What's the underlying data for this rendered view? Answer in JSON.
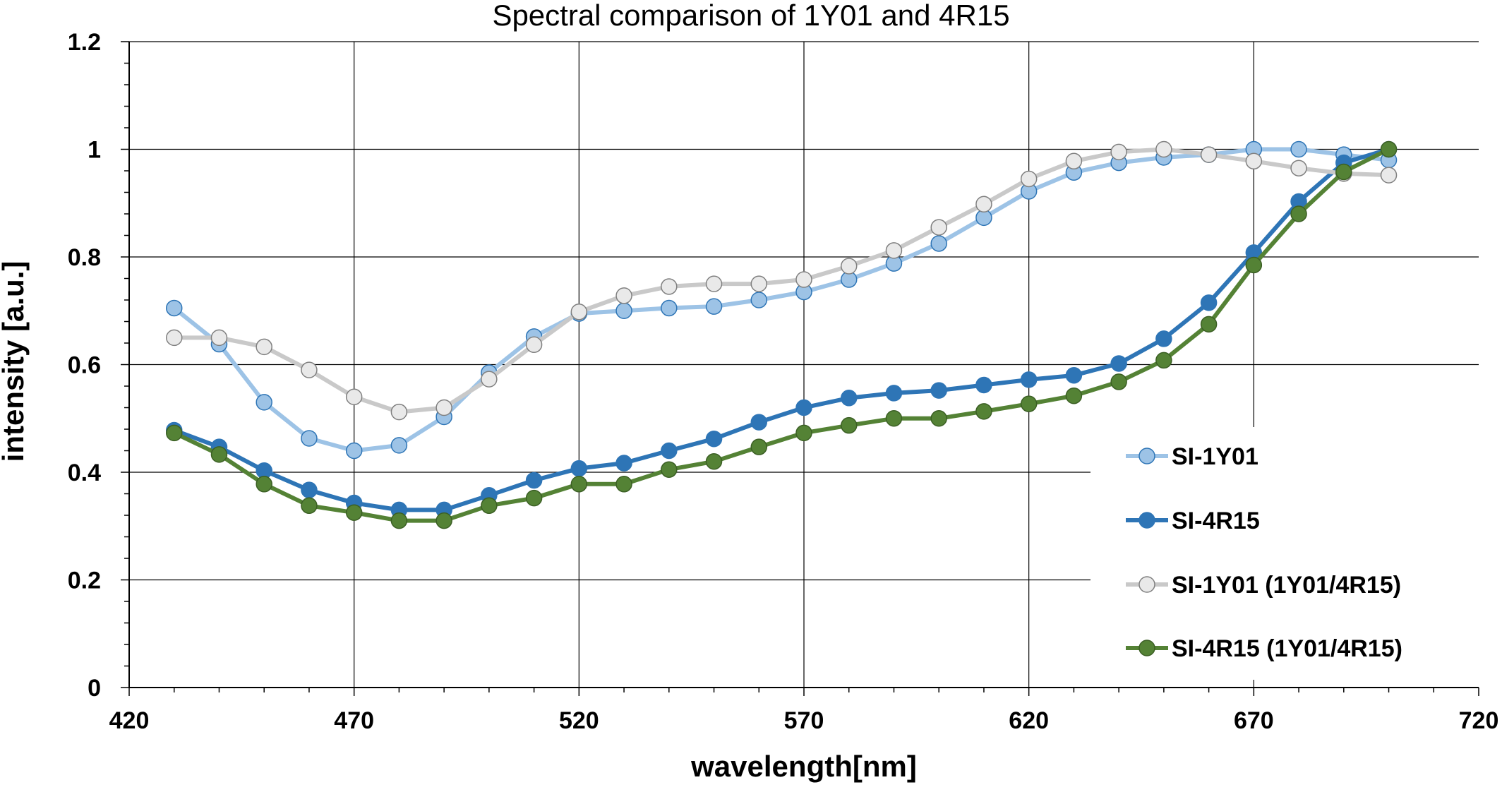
{
  "chart_data": {
    "type": "line",
    "title": "Spectral comparison of 1Y01 and 4R15",
    "xlabel": "wavelength[nm]",
    "ylabel": "intensity [a.u.]",
    "xlim": [
      420,
      720
    ],
    "ylim": [
      0,
      1.2
    ],
    "x_ticks": [
      420,
      470,
      520,
      570,
      620,
      670,
      720
    ],
    "y_ticks": [
      0,
      0.2,
      0.4,
      0.6,
      0.8,
      1,
      1.2
    ],
    "y_tick_labels": [
      "0",
      "0.2",
      "0.4",
      "0.6",
      "0.8",
      "1",
      "1.2"
    ],
    "grid": true,
    "legend_position": "right",
    "x": [
      430,
      440,
      450,
      460,
      470,
      480,
      490,
      500,
      510,
      520,
      530,
      540,
      550,
      560,
      570,
      580,
      590,
      600,
      610,
      620,
      630,
      640,
      650,
      660,
      670,
      680,
      690,
      700
    ],
    "series": [
      {
        "name": "SI-1Y01",
        "color": "#9dc3e6",
        "marker_fill": "#9dc3e6",
        "marker_stroke": "#2e75b6",
        "values": [
          0.705,
          0.638,
          0.53,
          0.463,
          0.44,
          0.45,
          0.503,
          0.585,
          0.652,
          0.695,
          0.7,
          0.705,
          0.708,
          0.72,
          0.735,
          0.758,
          0.788,
          0.825,
          0.873,
          0.922,
          0.957,
          0.975,
          0.985,
          0.99,
          1.0,
          1.0,
          0.99,
          0.98
        ]
      },
      {
        "name": "SI-4R15",
        "color": "#2e75b6",
        "marker_fill": "#2e75b6",
        "marker_stroke": "#2e75b6",
        "values": [
          0.478,
          0.447,
          0.403,
          0.367,
          0.343,
          0.33,
          0.33,
          0.357,
          0.385,
          0.407,
          0.417,
          0.44,
          0.462,
          0.493,
          0.52,
          0.538,
          0.547,
          0.552,
          0.562,
          0.572,
          0.58,
          0.602,
          0.648,
          0.715,
          0.808,
          0.903,
          0.975,
          1.0
        ]
      },
      {
        "name": "SI-1Y01 (1Y01/4R15)",
        "color": "#c9c9c9",
        "marker_fill": "#e9e9e9",
        "marker_stroke": "#808080",
        "values": [
          0.65,
          0.65,
          0.633,
          0.59,
          0.54,
          0.512,
          0.52,
          0.573,
          0.637,
          0.698,
          0.728,
          0.745,
          0.75,
          0.75,
          0.758,
          0.783,
          0.812,
          0.855,
          0.898,
          0.945,
          0.978,
          0.995,
          1.0,
          0.99,
          0.978,
          0.965,
          0.955,
          0.952
        ]
      },
      {
        "name": "SI-4R15 (1Y01/4R15)",
        "color": "#548235",
        "marker_fill": "#548235",
        "marker_stroke": "#3b5f24",
        "values": [
          0.473,
          0.433,
          0.378,
          0.338,
          0.325,
          0.31,
          0.31,
          0.338,
          0.352,
          0.378,
          0.378,
          0.405,
          0.42,
          0.447,
          0.473,
          0.487,
          0.5,
          0.5,
          0.513,
          0.527,
          0.542,
          0.568,
          0.608,
          0.675,
          0.785,
          0.88,
          0.958,
          1.0
        ]
      }
    ]
  }
}
